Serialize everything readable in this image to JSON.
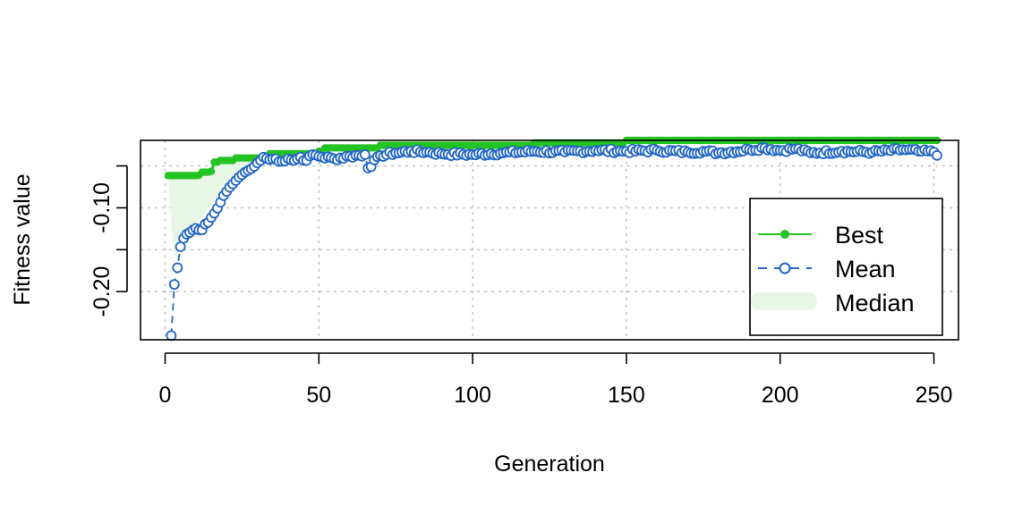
{
  "chart_data": {
    "type": "line",
    "title": "",
    "xlabel": "Generation",
    "ylabel": "Fitness value",
    "xlim": [
      -8,
      258
    ],
    "ylim": [
      -0.2575,
      -0.0195
    ],
    "xticks": [
      0,
      50,
      100,
      150,
      200,
      250
    ],
    "xtick_labels": [
      "0",
      "50",
      "100",
      "150",
      "200",
      "250"
    ],
    "yticks": [
      -0.2,
      -0.15,
      -0.1,
      -0.05
    ],
    "ytick_labels": [
      "-0.20",
      "",
      "-0.10",
      ""
    ],
    "grid": true,
    "legend_position": "right",
    "colors": {
      "best": "#22c322",
      "mean": "#2166c4",
      "median_fill": "#e8f6e6",
      "grid": "#bdbdbd"
    },
    "series": [
      {
        "name": "Best",
        "style": "line-filled-points",
        "keypoints": [
          [
            1,
            -0.0615
          ],
          [
            11,
            -0.0612
          ],
          [
            12,
            -0.0575
          ],
          [
            15,
            -0.0565
          ],
          [
            16,
            -0.0455
          ],
          [
            18,
            -0.0435
          ],
          [
            23,
            -0.0405
          ],
          [
            32,
            -0.0385
          ],
          [
            34,
            -0.0355
          ],
          [
            50,
            -0.0325
          ],
          [
            52,
            -0.0285
          ],
          [
            70,
            -0.0255
          ],
          [
            120,
            -0.0225
          ],
          [
            150,
            -0.0195
          ],
          [
            251,
            -0.0195
          ]
        ]
      },
      {
        "name": "Mean",
        "style": "dashed-open-points",
        "early_values": [
          [
            2,
            -0.2525
          ],
          [
            3,
            -0.1915
          ],
          [
            4,
            -0.1715
          ],
          [
            5,
            -0.1465
          ],
          [
            6,
            -0.1365
          ],
          [
            7,
            -0.1315
          ],
          [
            8,
            -0.1295
          ],
          [
            9,
            -0.1265
          ],
          [
            10,
            -0.1245
          ],
          [
            11,
            -0.1265
          ],
          [
            12,
            -0.1265
          ],
          [
            13,
            -0.1195
          ],
          [
            14,
            -0.1175
          ],
          [
            15,
            -0.1115
          ],
          [
            16,
            -0.1065
          ],
          [
            17,
            -0.1005
          ],
          [
            18,
            -0.0935
          ],
          [
            19,
            -0.0855
          ],
          [
            20,
            -0.0805
          ],
          [
            21,
            -0.0755
          ],
          [
            22,
            -0.0715
          ],
          [
            23,
            -0.0675
          ],
          [
            24,
            -0.0635
          ],
          [
            25,
            -0.0605
          ],
          [
            26,
            -0.0575
          ],
          [
            27,
            -0.0555
          ],
          [
            28,
            -0.0535
          ],
          [
            29,
            -0.0505
          ],
          [
            30,
            -0.0465
          ],
          [
            31,
            -0.0435
          ],
          [
            32,
            -0.0395
          ],
          [
            34,
            -0.0425
          ],
          [
            36,
            -0.0415
          ],
          [
            38,
            -0.0445
          ],
          [
            40,
            -0.0415
          ],
          [
            42,
            -0.0435
          ],
          [
            44,
            -0.0395
          ],
          [
            46,
            -0.0435
          ],
          [
            48,
            -0.0365
          ],
          [
            50,
            -0.0385
          ],
          [
            55,
            -0.0415
          ],
          [
            60,
            -0.0385
          ],
          [
            65,
            -0.0365
          ],
          [
            66,
            -0.0525
          ],
          [
            70,
            -0.0375
          ],
          [
            75,
            -0.0345
          ],
          [
            80,
            -0.0325
          ],
          [
            85,
            -0.0335
          ],
          [
            90,
            -0.0355
          ],
          [
            100,
            -0.0365
          ],
          [
            110,
            -0.0345
          ],
          [
            120,
            -0.0325
          ],
          [
            130,
            -0.0335
          ],
          [
            140,
            -0.0315
          ],
          [
            150,
            -0.0325
          ],
          [
            160,
            -0.0315
          ],
          [
            170,
            -0.0335
          ],
          [
            175,
            -0.0325
          ],
          [
            180,
            -0.0345
          ],
          [
            190,
            -0.0305
          ],
          [
            195,
            -0.0285
          ],
          [
            200,
            -0.0315
          ],
          [
            205,
            -0.0295
          ],
          [
            210,
            -0.0345
          ],
          [
            220,
            -0.0325
          ],
          [
            230,
            -0.0335
          ],
          [
            240,
            -0.0305
          ],
          [
            245,
            -0.0325
          ],
          [
            250,
            -0.0335
          ],
          [
            251,
            -0.0375
          ]
        ],
        "late_range": {
          "from": 33,
          "to": 251,
          "center": -0.0335,
          "jitter": 0.0048
        }
      },
      {
        "name": "Median",
        "style": "filled-band",
        "note_values_between_mean_and_best": true
      }
    ],
    "legend": [
      {
        "key": "best",
        "label": "Best"
      },
      {
        "key": "mean",
        "label": "Mean"
      },
      {
        "key": "median",
        "label": "Median"
      }
    ]
  }
}
